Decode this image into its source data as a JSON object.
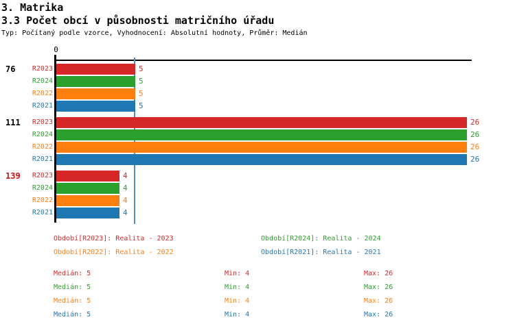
{
  "header": {
    "title": "3. Matrika",
    "subtitle": "3.3 Počet obcí v působnosti matričního úřadu",
    "meta": "Typ: Počítaný podle vzorce, Vyhodnocení: Absolutní hodnoty, Průměr: Medián"
  },
  "colors": {
    "R2023": "#d62728",
    "R2024": "#2ca02c",
    "R2022": "#ff7f0e",
    "R2021": "#1f77b4",
    "axis": "#000000",
    "median_line": "#4a90c2",
    "group_label_default": "#000000",
    "group_label_highlight": "#cc1414"
  },
  "chart_data": {
    "type": "bar",
    "orientation": "horizontal",
    "title": "3.3 Počet obcí v působnosti matričního úřadu",
    "x_axis": {
      "zero_label": "0",
      "min": 0,
      "max": 26,
      "grid": false
    },
    "median_reference_line": 5,
    "series_order": [
      "R2023",
      "R2024",
      "R2022",
      "R2021"
    ],
    "groups": [
      {
        "label": "76",
        "highlight": false,
        "values": {
          "R2023": 5,
          "R2024": 5,
          "R2022": 5,
          "R2021": 5
        }
      },
      {
        "label": "111",
        "highlight": false,
        "values": {
          "R2023": 26,
          "R2024": 26,
          "R2022": 26,
          "R2021": 26
        }
      },
      {
        "label": "139",
        "highlight": true,
        "values": {
          "R2023": 4,
          "R2024": 4,
          "R2022": 4,
          "R2021": 4
        }
      }
    ]
  },
  "legend": {
    "items": [
      {
        "label": "Období[R2023]: Realita - 2023",
        "series": "R2023"
      },
      {
        "label": "Období[R2024]: Realita - 2024",
        "series": "R2024"
      },
      {
        "label": "Období[R2022]: Realita - 2022",
        "series": "R2022"
      },
      {
        "label": "Období[R2021]: Realita - 2021",
        "series": "R2021"
      }
    ]
  },
  "stats": {
    "rows": [
      {
        "series": "R2023",
        "median": "Medián: 5",
        "min": "Min: 4",
        "max": "Max: 26"
      },
      {
        "series": "R2024",
        "median": "Medián: 5",
        "min": "Min: 4",
        "max": "Max: 26"
      },
      {
        "series": "R2022",
        "median": "Medián: 5",
        "min": "Min: 4",
        "max": "Max: 26"
      },
      {
        "series": "R2021",
        "median": "Medián: 5",
        "min": "Min: 4",
        "max": "Max: 26"
      }
    ]
  }
}
